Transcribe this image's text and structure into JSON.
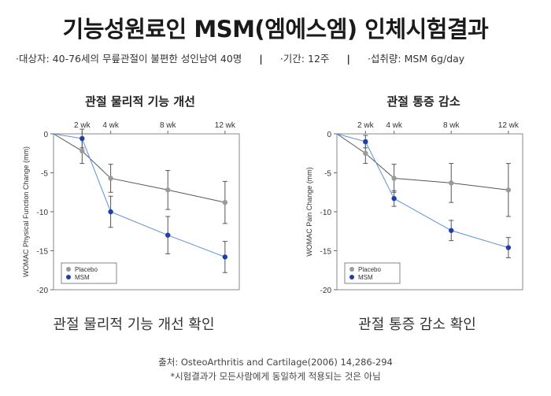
{
  "page": {
    "title": "기능성원료인 MSM(엠에스엠) 인체시험결과",
    "info": {
      "subjects": "·대상자: 40-76세의 무릎관절이 불편한 성인남여 40명",
      "sep1": "|",
      "period": "·기간: 12주",
      "sep2": "|",
      "dose": "·섭취량: MSM 6g/day"
    },
    "caption_left": "관절 물리적 기능 개선 확인",
    "caption_right": "관절 통증 감소 확인",
    "source": "출처: OsteoArthritis and Cartilage(2006) 14,286-294",
    "note": "*시험결과가 모든사람에게 동일하게 적용되는 것은 아님"
  },
  "colors": {
    "placebo": "#9a9a9a",
    "msm": "#1f3fa6",
    "msm_line": "#5b8fd6",
    "placebo_line": "#555555",
    "error_bar": "#555555"
  },
  "chart_data": [
    {
      "type": "line",
      "title": "관절 물리적 기능 개선",
      "ylabel": "WOMAC Physical Function Change (mm)",
      "x": [
        0,
        2,
        4,
        8,
        12
      ],
      "x_tick_labels": [
        "2 wk",
        "4 wk",
        "8 wk",
        "12 wk"
      ],
      "x_tick_positions": [
        2,
        4,
        8,
        12
      ],
      "ylim": [
        -20,
        0
      ],
      "y_ticks": [
        0,
        -5,
        -10,
        -15,
        -20
      ],
      "legend": [
        "Placebo",
        "MSM"
      ],
      "legend_position": "bottom-left",
      "series": [
        {
          "name": "Placebo",
          "values": [
            0,
            -2.2,
            -5.7,
            -7.2,
            -8.8
          ],
          "error": [
            0,
            1.6,
            1.8,
            2.5,
            2.7
          ]
        },
        {
          "name": "MSM",
          "values": [
            0,
            -0.6,
            -10.0,
            -13.0,
            -15.8
          ],
          "error": [
            0,
            1.2,
            2.0,
            2.4,
            2.0
          ]
        }
      ]
    },
    {
      "type": "line",
      "title": "관절 통증 감소",
      "ylabel": "WOMAC Pain Change (mm)",
      "x": [
        0,
        2,
        4,
        8,
        12
      ],
      "x_tick_labels": [
        "2 wk",
        "4 wk",
        "8 wk",
        "12 wk"
      ],
      "x_tick_positions": [
        2,
        4,
        8,
        12
      ],
      "ylim": [
        -20,
        0
      ],
      "y_ticks": [
        0,
        -5,
        -10,
        -15,
        -20
      ],
      "legend": [
        "Placebo",
        "MSM"
      ],
      "legend_position": "bottom-left",
      "series": [
        {
          "name": "Placebo",
          "values": [
            0,
            -2.5,
            -5.7,
            -6.3,
            -7.2
          ],
          "error": [
            0,
            1.3,
            1.8,
            2.5,
            3.4
          ]
        },
        {
          "name": "MSM",
          "values": [
            0,
            -1.0,
            -8.3,
            -12.4,
            -14.6
          ],
          "error": [
            0,
            0.8,
            1.0,
            1.3,
            1.3
          ]
        }
      ]
    }
  ]
}
